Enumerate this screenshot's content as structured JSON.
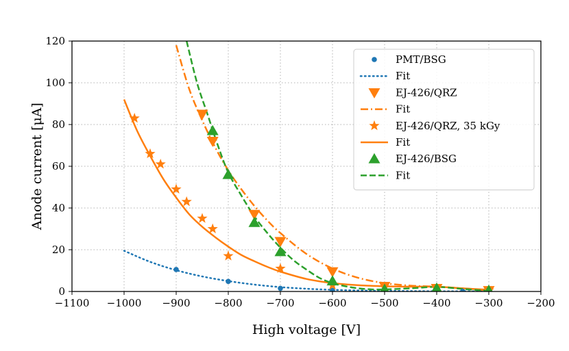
{
  "chart_data": {
    "type": "scatter",
    "title": "",
    "xlabel": "High voltage [V]",
    "ylabel": "Anode current [μA]",
    "xlim": [
      -1100,
      -200
    ],
    "ylim": [
      0,
      120
    ],
    "xticks": [
      -1100,
      -1000,
      -900,
      -800,
      -700,
      -600,
      -500,
      -400,
      -300,
      -200
    ],
    "yticks": [
      0,
      20,
      40,
      60,
      80,
      100,
      120
    ],
    "xtick_labels": [
      "−1100",
      "−1000",
      "−900",
      "−800",
      "−700",
      "−600",
      "−500",
      "−400",
      "−300",
      "−200"
    ],
    "ytick_labels": [
      "0",
      "20",
      "40",
      "60",
      "80",
      "100",
      "120"
    ],
    "grid": true,
    "legend_position": "top-right",
    "series": [
      {
        "name": "PMT/BSG",
        "kind": "points",
        "marker": "circle",
        "color": "#1f77b4",
        "x": [
          -900,
          -800,
          -700,
          -600,
          -500,
          -400,
          -350
        ],
        "y": [
          10.5,
          4.8,
          1.5,
          0.5,
          0.2,
          0.1,
          0.05
        ]
      },
      {
        "name": "Fit",
        "kind": "line",
        "line_style": "dotted",
        "color": "#1f77b4",
        "x": [
          -1000,
          -950,
          -900,
          -850,
          -800,
          -750,
          -700,
          -650,
          -600,
          -550,
          -500,
          -450,
          -400,
          -350,
          -300
        ],
        "y": [
          19.5,
          14.2,
          10.2,
          7.2,
          5.0,
          3.3,
          2.1,
          1.3,
          0.8,
          0.5,
          0.3,
          0.2,
          0.1,
          0.1,
          0.1
        ]
      },
      {
        "name": "EJ-426/QRZ",
        "kind": "points",
        "marker": "triangle-down",
        "color": "#ff7f0e",
        "x": [
          -850,
          -830,
          -750,
          -700,
          -600,
          -500,
          -400,
          -300
        ],
        "y": [
          85,
          72,
          37,
          24,
          9.5,
          2.5,
          1.5,
          0.5
        ]
      },
      {
        "name": "Fit",
        "kind": "line",
        "line_style": "dashdot",
        "color": "#ff7f0e",
        "x": [
          -900,
          -875,
          -850,
          -825,
          -800,
          -775,
          -750,
          -725,
          -700,
          -650,
          -600,
          -550,
          -500,
          -450,
          -400,
          -350,
          -300
        ],
        "y": [
          118,
          97,
          82,
          69,
          58,
          49,
          41,
          34,
          28,
          18,
          11,
          6.5,
          4,
          2.8,
          2.3,
          1.5,
          0.5
        ]
      },
      {
        "name": "EJ-426/QRZ, 35 kGy",
        "kind": "points",
        "marker": "star",
        "color": "#ff7f0e",
        "x": [
          -980,
          -950,
          -930,
          -900,
          -880,
          -850,
          -830,
          -800,
          -700,
          -600,
          -500,
          -400,
          -300
        ],
        "y": [
          83,
          66,
          61,
          49,
          43,
          35,
          30,
          17,
          11,
          3,
          2,
          1.5,
          0.5
        ]
      },
      {
        "name": "Fit",
        "kind": "line",
        "line_style": "solid",
        "color": "#ff7f0e",
        "x": [
          -1000,
          -975,
          -950,
          -925,
          -900,
          -875,
          -850,
          -825,
          -800,
          -775,
          -750,
          -725,
          -700,
          -650,
          -600,
          -550,
          -500,
          -450,
          -400,
          -350,
          -300
        ],
        "y": [
          92,
          77,
          65,
          54,
          45,
          37,
          31,
          26,
          21.5,
          17.5,
          14.5,
          11.8,
          9.5,
          6,
          4,
          3,
          2.5,
          2.3,
          2.3,
          1.5,
          0.8
        ]
      },
      {
        "name": "EJ-426/BSG",
        "kind": "points",
        "marker": "triangle-up",
        "color": "#2ca02c",
        "x": [
          -830,
          -800,
          -750,
          -700,
          -600,
          -500,
          -400,
          -300
        ],
        "y": [
          77,
          56,
          33,
          19,
          5,
          1,
          1.5,
          0.5
        ]
      },
      {
        "name": "Fit",
        "kind": "line",
        "line_style": "dashed",
        "color": "#2ca02c",
        "x": [
          -880,
          -860,
          -840,
          -820,
          -800,
          -775,
          -750,
          -725,
          -700,
          -675,
          -650,
          -625,
          -600,
          -575,
          -550,
          -525,
          -500,
          -450,
          -400,
          -350,
          -300
        ],
        "y": [
          120,
          100,
          85,
          70,
          57,
          46,
          36,
          28,
          21,
          15,
          10.5,
          6.5,
          4,
          2.5,
          1.5,
          1,
          1,
          1.5,
          2.2,
          1.2,
          0.3
        ]
      }
    ]
  }
}
